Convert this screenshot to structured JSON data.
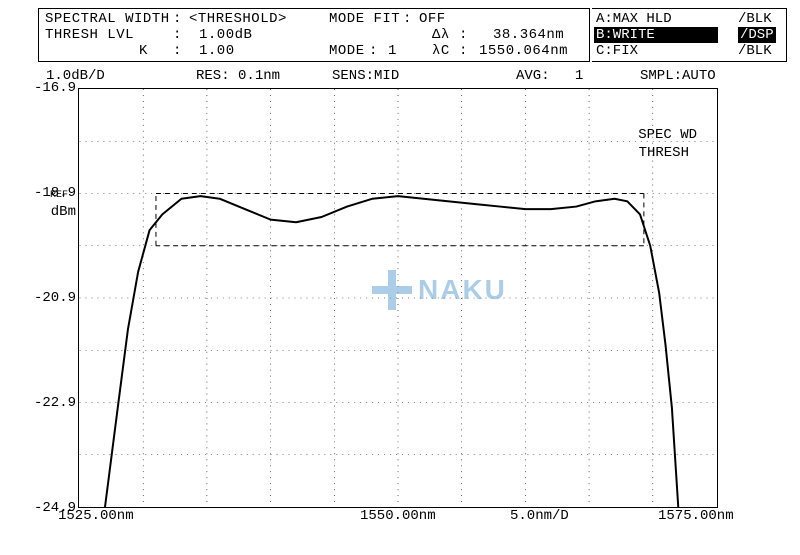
{
  "header": {
    "spectral_width_label": "SPECTRAL WIDTH",
    "spectral_width_value": "<THRESHOLD>",
    "mode_fit_label": "MODE FIT",
    "mode_fit_value": "OFF",
    "thresh_lvl_label": "THRESH LVL",
    "thresh_lvl_value": "1.00dB",
    "delta_lambda_label": "Δλ",
    "delta_lambda_value": "38.364nm",
    "k_label": "K",
    "k_value": "1.00",
    "mode_label": "MODE",
    "mode_value": "1",
    "lambda_c_label": "λC",
    "lambda_c_value": "1550.064nm"
  },
  "side_menu": {
    "a_label": "A:MAX HLD",
    "a_suffix": "/BLK",
    "b_label": "B:WRITE",
    "b_suffix": "/DSP",
    "c_label": "C:FIX",
    "c_suffix": "/BLK"
  },
  "infobar": {
    "yscale": "1.0dB/D",
    "res_label": "RES",
    "res_value": "0.1nm",
    "sens_label": "SENS",
    "sens_value": "MID",
    "avg_label": "AVG",
    "avg_value": "1",
    "smpl_label": "SMPL",
    "smpl_value": "AUTO"
  },
  "annotations": {
    "spec_wd": "SPEC WD",
    "thresh": "THRESH",
    "ref": "REF"
  },
  "watermark": "NAKU",
  "chart": {
    "type": "line",
    "background_color": "#ffffff",
    "grid_color": "#000000",
    "line_color": "#000000",
    "line_width": 2,
    "xlim": [
      1525.0,
      1575.0
    ],
    "ylim": [
      -24.9,
      -16.9
    ],
    "x_center": 1550.0,
    "x_step_nm_per_div": 5.0,
    "y_step_db_per_div": 1.0,
    "xlabel_left": "1525.00nm",
    "xlabel_center": "1550.00nm",
    "xlabel_right": "1575.00nm",
    "xlabel_scale": "5.0nm/D",
    "ylabel_unit": "dBm",
    "yticks": [
      -16.9,
      -18.9,
      -20.9,
      -22.9,
      -24.9
    ],
    "ref_level": -18.9,
    "threshold_box": {
      "x_left_nm": 1531.0,
      "x_right_nm": 1569.3,
      "y_top_db": -18.9,
      "y_bottom_db": -19.9
    },
    "trace_points_nm_db": [
      [
        1527.0,
        -24.9
      ],
      [
        1528.0,
        -23.0
      ],
      [
        1528.8,
        -21.5
      ],
      [
        1529.6,
        -20.4
      ],
      [
        1530.5,
        -19.6
      ],
      [
        1531.5,
        -19.3
      ],
      [
        1533.0,
        -19.0
      ],
      [
        1534.5,
        -18.95
      ],
      [
        1536.0,
        -19.0
      ],
      [
        1538.0,
        -19.2
      ],
      [
        1540.0,
        -19.4
      ],
      [
        1542.0,
        -19.45
      ],
      [
        1544.0,
        -19.35
      ],
      [
        1546.0,
        -19.15
      ],
      [
        1548.0,
        -19.0
      ],
      [
        1550.0,
        -18.95
      ],
      [
        1552.0,
        -19.0
      ],
      [
        1554.0,
        -19.05
      ],
      [
        1556.0,
        -19.1
      ],
      [
        1558.0,
        -19.15
      ],
      [
        1560.0,
        -19.2
      ],
      [
        1562.0,
        -19.2
      ],
      [
        1564.0,
        -19.15
      ],
      [
        1565.5,
        -19.05
      ],
      [
        1567.0,
        -19.0
      ],
      [
        1568.0,
        -19.05
      ],
      [
        1569.0,
        -19.3
      ],
      [
        1569.8,
        -19.9
      ],
      [
        1570.5,
        -20.8
      ],
      [
        1571.0,
        -21.8
      ],
      [
        1571.5,
        -23.0
      ],
      [
        1572.0,
        -24.9
      ]
    ]
  },
  "colors": {
    "text": "#000000",
    "border": "#000000",
    "inverse_bg": "#000000",
    "inverse_fg": "#ffffff",
    "watermark": "#6aa6d6"
  }
}
